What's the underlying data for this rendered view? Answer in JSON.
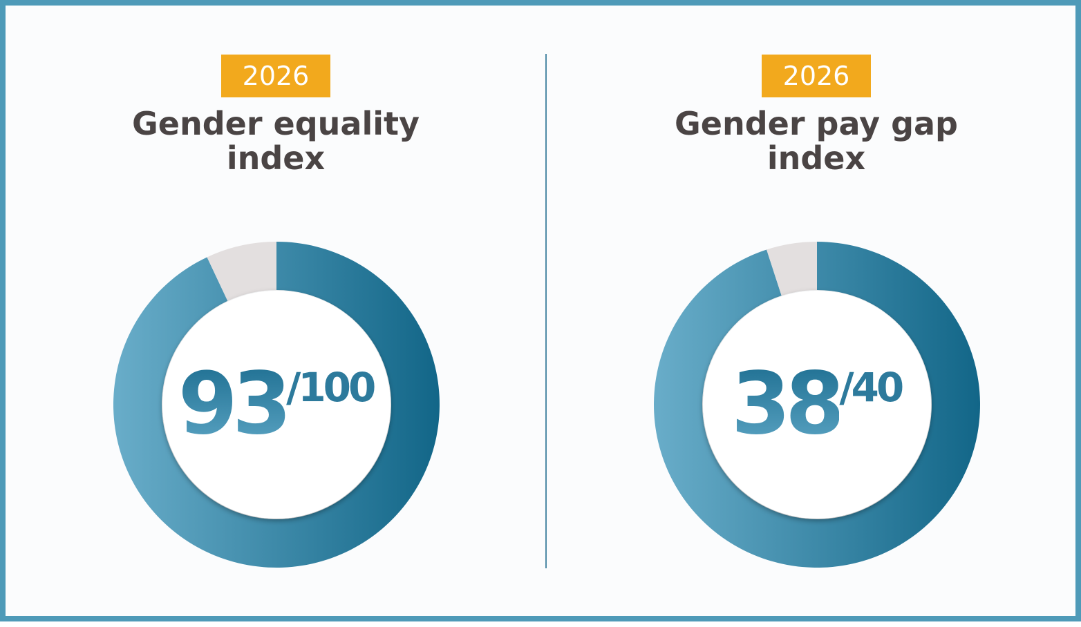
{
  "colors": {
    "frame": "#4e9ab8",
    "badge": "#f2a91d",
    "title": "#4a4444",
    "ring_dark": "#126688",
    "ring_light": "#69adc9",
    "remainder": "#e3dfdf"
  },
  "panels": [
    {
      "year": "2026",
      "title_line1": "Gender equality",
      "title_line2": "index",
      "score": "93",
      "max": "/100"
    },
    {
      "year": "2026",
      "title_line1": "Gender pay gap",
      "title_line2": "index",
      "score": "38",
      "max": "/40"
    }
  ],
  "chart_data": [
    {
      "type": "pie",
      "variant": "donut",
      "title": "Gender equality index",
      "values": [
        93,
        7
      ],
      "total": 100
    },
    {
      "type": "pie",
      "variant": "donut",
      "title": "Gender pay gap index",
      "values": [
        38,
        2
      ],
      "total": 40
    }
  ]
}
